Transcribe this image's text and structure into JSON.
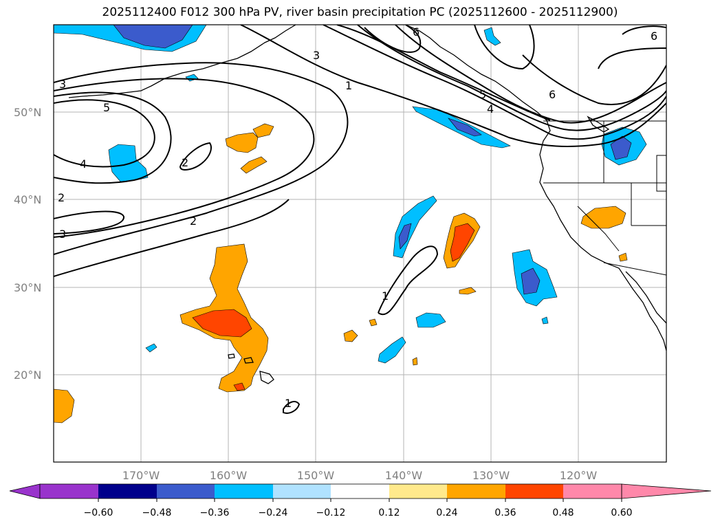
{
  "title": "2025112400 F012 300 hPa PV, river basin precipitation PC (2025112600 - 2025112900)",
  "lat_labels": [
    "50°N",
    "40°N",
    "30°N",
    "20°N"
  ],
  "lon_labels": [
    "170°W",
    "160°W",
    "150°W",
    "140°W",
    "130°W",
    "120°W"
  ],
  "contour_labels": [
    "3",
    "5",
    "4",
    "2",
    "3",
    "2",
    "2",
    "3",
    "1",
    "6",
    "5",
    "4",
    "6",
    "6",
    "1",
    "1"
  ],
  "colorbar": {
    "ticks": [
      "−0.60",
      "−0.48",
      "−0.36",
      "−0.24",
      "−0.12",
      "0.12",
      "0.24",
      "0.36",
      "0.48",
      "0.60"
    ],
    "colors": [
      "#9933cc",
      "#00008b",
      "#3b5bcc",
      "#00bfff",
      "#b0e2ff",
      "#ffffff",
      "#ffe98c",
      "#ffa500",
      "#ff4500",
      "#b22222",
      "#ff88aa"
    ]
  },
  "palette": {
    "neg_light": "#00bfff",
    "neg_mid": "#3b5bcc",
    "pos_light": "#ffa500",
    "pos_mid": "#ff4500"
  }
}
